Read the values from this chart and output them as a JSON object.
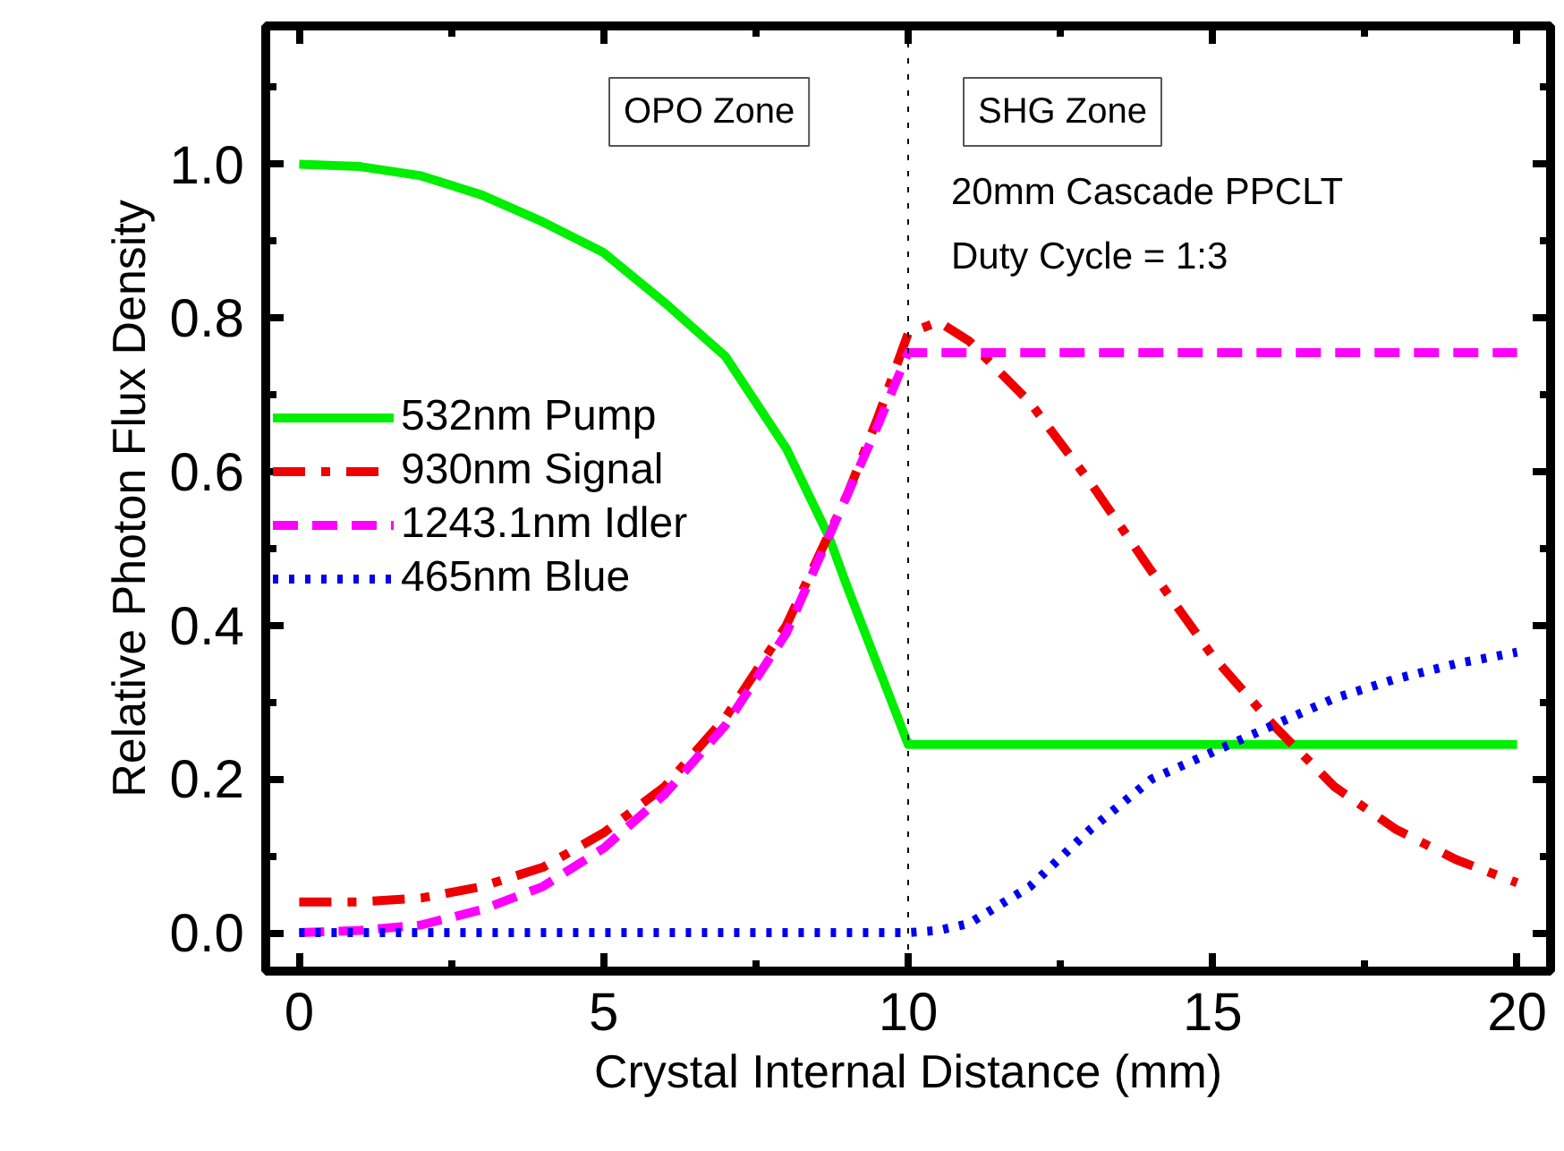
{
  "chart_data": {
    "type": "line",
    "xlabel": "Crystal Internal Distance (mm)",
    "ylabel": "Relative Photon Flux Density",
    "xlim": [
      -0.55,
      20.55
    ],
    "ylim": [
      -0.05,
      1.18
    ],
    "xticks": [
      0,
      {
        "value": 2.5,
        "label": null
      },
      5,
      {
        "value": 7.5,
        "label": null
      },
      10,
      {
        "value": 12.5,
        "label": null
      },
      15,
      {
        "value": 17.5,
        "label": null
      },
      20
    ],
    "yticks": [
      {
        "value": 0,
        "label": "0.0"
      },
      {
        "value": 0.1,
        "label": null
      },
      {
        "value": 0.2,
        "label": "0.2"
      },
      {
        "value": 0.3,
        "label": null
      },
      {
        "value": 0.4,
        "label": "0.4"
      },
      {
        "value": 0.5,
        "label": null
      },
      {
        "value": 0.6,
        "label": "0.6"
      },
      {
        "value": 0.7,
        "label": null
      },
      {
        "value": 0.8,
        "label": "0.8"
      },
      {
        "value": 0.9,
        "label": null
      },
      {
        "value": 1.0,
        "label": "1.0"
      },
      {
        "value": 1.1,
        "label": null
      }
    ],
    "legend": "left",
    "marker": "none",
    "ref_lines": [
      {
        "axis": "x",
        "value": 10,
        "label": null,
        "color": "#000000",
        "line_style": "dotted"
      }
    ],
    "annotations": [
      "OPO Zone",
      "SHG Zone",
      "20mm Cascade PPCLT",
      "Duty Cycle = 1:3"
    ],
    "series": [
      {
        "name": "532nm Pump",
        "color": "#00ee00",
        "line_style": "solid",
        "x": [
          0,
          1,
          2,
          3,
          4,
          5,
          6,
          7,
          8,
          8.7,
          9,
          10,
          20
        ],
        "values": [
          1.0,
          0.997,
          0.985,
          0.96,
          0.925,
          0.885,
          0.82,
          0.75,
          0.63,
          0.515,
          0.45,
          0.245,
          0.245
        ]
      },
      {
        "name": "930nm Signal",
        "color": "#ee0000",
        "line_style": "dashdot",
        "x": [
          0,
          1,
          2,
          3,
          4,
          5,
          6,
          7,
          8,
          9,
          9.5,
          10,
          10.5,
          11,
          12,
          13,
          14,
          15,
          16,
          17,
          18,
          19,
          20
        ],
        "values": [
          0.04,
          0.04,
          0.045,
          0.06,
          0.085,
          0.13,
          0.19,
          0.28,
          0.4,
          0.57,
          0.67,
          0.78,
          0.795,
          0.77,
          0.69,
          0.585,
          0.47,
          0.36,
          0.27,
          0.19,
          0.135,
          0.095,
          0.065
        ]
      },
      {
        "name": "1243.1nm Idler",
        "color": "#ff00ff",
        "line_style": "dashed",
        "x": [
          0,
          1,
          2,
          3,
          4,
          5,
          6,
          7,
          8,
          9,
          9.5,
          10,
          20
        ],
        "values": [
          0.0,
          0.003,
          0.01,
          0.03,
          0.06,
          0.11,
          0.18,
          0.27,
          0.39,
          0.57,
          0.66,
          0.755,
          0.755
        ]
      },
      {
        "name": "465nm Blue",
        "color": "#0000ee",
        "line_style": "dotted",
        "x": [
          0,
          10,
          10.5,
          11,
          12,
          13,
          14,
          15,
          16,
          17,
          18,
          19,
          20
        ],
        "values": [
          0,
          0,
          0.003,
          0.012,
          0.06,
          0.135,
          0.2,
          0.235,
          0.27,
          0.305,
          0.33,
          0.35,
          0.365
        ]
      }
    ]
  }
}
